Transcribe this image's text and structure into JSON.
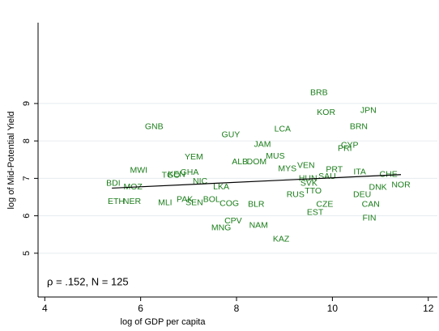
{
  "chart_data": {
    "type": "scatter",
    "x_label": "log of GDP per capita",
    "y_label": "log of Mid-Potential Yield",
    "annotation": "ρ = .152, N = 125",
    "color": "#1b7d1b",
    "labels": [
      "BRB",
      "KOR",
      "JPN",
      "GNB",
      "LCA",
      "BRN",
      "GUY",
      "JAM",
      "CYP",
      "PRI",
      "MUS",
      "YEM",
      "ALB",
      "DOM",
      "MWI",
      "VEN",
      "PRT",
      "BDI",
      "ETH",
      "NER",
      "NOR",
      "ITA",
      "CHE",
      "SAU",
      "CZE",
      "EST",
      "FIN",
      "CAN",
      "DNK",
      "DEU",
      "CPV",
      "MNG",
      "NAM",
      "KAZ",
      "SEN",
      "COG",
      "BOL",
      "BLR",
      "PAK",
      "MLI",
      "TGO",
      "GHA",
      "KEN",
      "MOZ",
      "NIC",
      "LKA",
      "MYS",
      "SVK",
      "RUS",
      "HUN",
      "TTO"
    ],
    "x": [
      9.72,
      9.87,
      10.75,
      6.28,
      8.96,
      10.55,
      7.88,
      8.54,
      10.36,
      10.26,
      8.81,
      7.11,
      8.07,
      8.42,
      5.96,
      9.45,
      10.04,
      5.43,
      5.49,
      5.82,
      11.43,
      10.57,
      11.17,
      9.89,
      9.84,
      9.64,
      10.77,
      10.8,
      10.95,
      10.62,
      7.93,
      7.68,
      8.46,
      8.93,
      7.12,
      7.85,
      7.48,
      8.41,
      6.92,
      6.51,
      6.63,
      7.02,
      6.75,
      5.84,
      7.24,
      7.68,
      9.06,
      9.51,
      9.23,
      9.49,
      9.6
    ],
    "y": [
      9.28,
      8.76,
      8.81,
      8.38,
      8.31,
      8.38,
      8.16,
      7.9,
      7.88,
      7.79,
      7.59,
      7.57,
      7.44,
      7.44,
      7.21,
      7.34,
      7.23,
      6.86,
      6.38,
      6.38,
      6.82,
      7.17,
      7.1,
      7.05,
      6.3,
      6.08,
      5.93,
      6.3,
      6.75,
      6.56,
      5.86,
      5.67,
      5.74,
      5.37,
      6.34,
      6.32,
      6.43,
      6.3,
      6.43,
      6.34,
      7.08,
      7.16,
      7.1,
      6.77,
      6.92,
      6.77,
      7.25,
      6.86,
      6.56,
      6.99,
      6.66
    ],
    "fit_line": {
      "x": [
        5.4,
        11.43
      ],
      "y": [
        6.74,
        7.1
      ]
    },
    "xlim": [
      3.86,
      12.19
    ],
    "ylim": [
      3.83,
      11.16
    ],
    "xticks": [
      4,
      6,
      8,
      10,
      12
    ],
    "yticks": [
      5,
      6,
      7,
      8,
      9
    ],
    "grid": true
  }
}
